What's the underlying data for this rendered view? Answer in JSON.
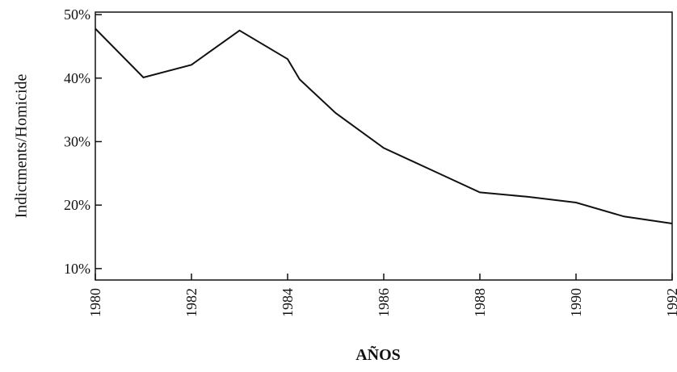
{
  "chart_data": {
    "type": "line",
    "x_label": "AÑOS",
    "y_label": "Indictments/Homicide",
    "x": [
      1980,
      1981,
      1982,
      1983,
      1984,
      1984.25,
      1985,
      1986,
      1987,
      1988,
      1989,
      1990,
      1991,
      1992
    ],
    "values": [
      47.8,
      40.1,
      42.1,
      47.5,
      43,
      39.8,
      34.5,
      29,
      25.5,
      22,
      21.3,
      20.4,
      18.2,
      17.1
    ],
    "color": "#111111",
    "xlim": [
      1980,
      1992
    ],
    "xticks": [
      1980,
      1982,
      1984,
      1986,
      1988,
      1990,
      1992
    ],
    "ylim": [
      8.2,
      50.4
    ],
    "yticks": [
      {
        "value": 10,
        "label": "10%"
      },
      {
        "value": 20,
        "label": "20%"
      },
      {
        "value": 30,
        "label": "30%"
      },
      {
        "value": 40,
        "label": "40%"
      },
      {
        "value": 50,
        "label": "50%"
      }
    ]
  }
}
